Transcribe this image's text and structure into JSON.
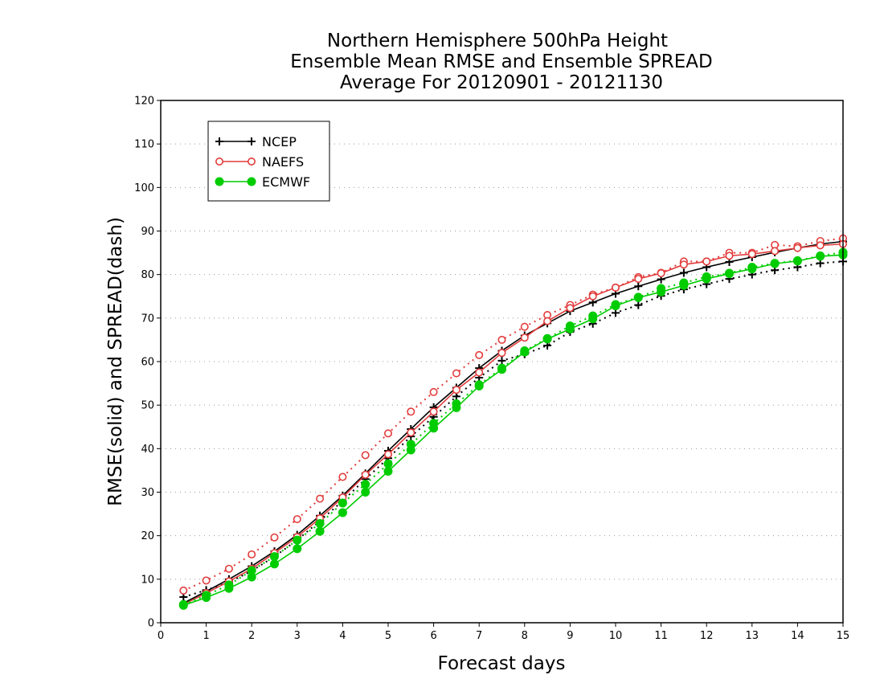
{
  "chart_data": {
    "type": "line",
    "title": [
      "Northern Hemisphere 500hPa Height",
      "Ensemble Mean RMSE and Ensemble SPREAD",
      "Average For 20120901 - 20121130"
    ],
    "xlabel": "Forecast days",
    "ylabel": "RMSE(solid) and SPREAD(dash)",
    "xlim": [
      0,
      15
    ],
    "ylim": [
      0,
      120
    ],
    "xticks": [
      "0",
      "1",
      "2",
      "3",
      "4",
      "5",
      "6",
      "7",
      "8",
      "9",
      "10",
      "11",
      "12",
      "13",
      "14",
      "15"
    ],
    "yticks": [
      "0",
      "10",
      "20",
      "30",
      "40",
      "50",
      "60",
      "70",
      "80",
      "90",
      "100",
      "110",
      "120"
    ],
    "grid": true,
    "legend_position": "top-left",
    "x": [
      0.5,
      1,
      1.5,
      2,
      2.5,
      3,
      3.5,
      4,
      4.5,
      5,
      5.5,
      6,
      6.5,
      7,
      7.5,
      8,
      8.5,
      9,
      9.5,
      10,
      10.5,
      11,
      11.5,
      12,
      12.5,
      13,
      13.5,
      14,
      14.5,
      15
    ],
    "series": [
      {
        "name": "NCEP",
        "color": "#000000",
        "marker": "plus",
        "rmse": [
          4.5,
          7.2,
          10,
          13,
          16.4,
          20.2,
          24.6,
          29.2,
          34.3,
          39.5,
          44.5,
          49.5,
          54,
          58.5,
          62.5,
          66,
          68.8,
          71.6,
          73.6,
          75.6,
          77.3,
          78.9,
          80.4,
          81.7,
          82.9,
          84,
          85.1,
          86.1,
          87,
          87.6
        ],
        "spread": [
          5.9,
          7.5,
          9.3,
          11.9,
          15.2,
          19,
          23.4,
          28,
          33,
          37.8,
          42.8,
          47.3,
          52,
          56.3,
          60.2,
          61.7,
          63.7,
          66.8,
          68.7,
          71.2,
          73,
          75.1,
          76.6,
          77.8,
          79,
          80,
          81,
          81.7,
          82.6,
          83
        ]
      },
      {
        "name": "NAEFS",
        "color": "#e23c3c",
        "marker": "circle-open",
        "rmse": [
          4.2,
          6.8,
          9.5,
          12.4,
          16,
          19.7,
          24,
          28.8,
          34,
          38.7,
          43.7,
          48.5,
          53.5,
          57.5,
          62,
          65.5,
          69.3,
          72.3,
          75,
          77,
          79,
          80.3,
          82.3,
          83,
          84.3,
          84.7,
          85.4,
          86.1,
          86.7,
          87
        ],
        "spread": [
          7.4,
          9.7,
          12.4,
          15.7,
          19.6,
          23.8,
          28.5,
          33.5,
          38.5,
          43.5,
          48.5,
          53,
          57.3,
          61.5,
          65,
          68,
          70.7,
          73,
          75.4,
          77,
          79.4,
          80.4,
          83,
          83,
          85,
          85,
          86.8,
          86.5,
          87.7,
          88.3
        ]
      },
      {
        "name": "ECMWF",
        "color": "#00cc00",
        "marker": "circle-filled",
        "rmse": [
          4,
          5.8,
          7.9,
          10.5,
          13.5,
          17,
          21,
          25.3,
          30,
          34.8,
          39.7,
          44.7,
          49.4,
          54.4,
          58.2,
          62.2,
          65.2,
          67.5,
          69.8,
          72.8,
          74.7,
          76,
          77.5,
          79,
          80.2,
          81.3,
          82.5,
          83.1,
          84.2,
          84.5
        ],
        "spread": [
          4.2,
          6.3,
          8.7,
          12,
          15.2,
          19,
          22.8,
          27.5,
          31.8,
          36.5,
          41,
          45.8,
          50.3,
          54.7,
          58.5,
          62.5,
          65.3,
          68.2,
          70.5,
          73.1,
          74.8,
          76.8,
          78.1,
          79.5,
          80.3,
          81.7,
          82.6,
          83.2,
          84.3,
          85.1
        ]
      }
    ]
  }
}
